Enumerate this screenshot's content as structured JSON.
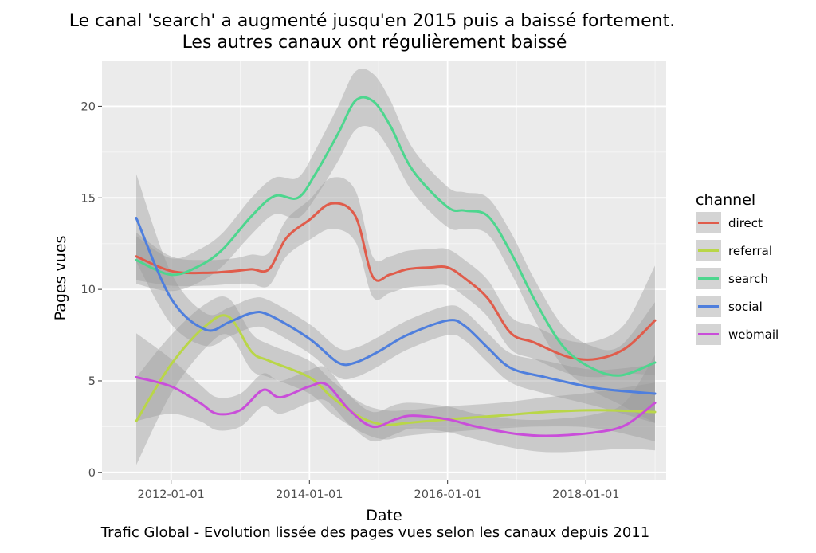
{
  "chart_data": {
    "type": "line",
    "title": "Le canal 'search' a augmenté jusqu'en 2015 puis a baissé fortement.",
    "subtitle": "Les autres canaux ont régulièrement baissé",
    "caption": "Trafic Global - Evolution lissée des pages vues selon les canaux depuis 2011",
    "xlabel": "Date",
    "ylabel": "Pages vues",
    "x_ticks": [
      "2012-01-01",
      "2014-01-01",
      "2016-01-01",
      "2018-01-01"
    ],
    "y_ticks": [
      0,
      5,
      10,
      15,
      20
    ],
    "xlim": [
      "2011-01-01",
      "2019-03-01"
    ],
    "ylim": [
      -0.4,
      22.5
    ],
    "grid": true,
    "legend": {
      "title": "channel",
      "placement": "right"
    },
    "series": [
      {
        "name": "direct",
        "color": "#e05c4b",
        "x": [
          "2011-07-01",
          "2012-01-01",
          "2012-07-01",
          "2012-12-01",
          "2013-03-01",
          "2013-06-01",
          "2013-09-01",
          "2014-01-01",
          "2014-05-01",
          "2014-09-01",
          "2014-12-01",
          "2015-03-01",
          "2015-06-01",
          "2015-10-01",
          "2016-01-01",
          "2016-04-01",
          "2016-08-01",
          "2016-12-01",
          "2017-04-01",
          "2017-10-01",
          "2018-03-01",
          "2018-08-01",
          "2019-01-01"
        ],
        "y": [
          11.8,
          11.0,
          10.9,
          11.0,
          11.1,
          11.1,
          12.8,
          13.8,
          14.7,
          14.0,
          10.7,
          10.8,
          11.1,
          11.2,
          11.2,
          10.6,
          9.5,
          7.6,
          7.1,
          6.3,
          6.2,
          6.8,
          8.3
        ],
        "band": [
          1.3,
          0.8,
          0.7,
          0.7,
          0.8,
          0.9,
          1.0,
          1.1,
          1.4,
          1.4,
          1.1,
          1.0,
          1.0,
          1.0,
          1.0,
          1.0,
          1.0,
          0.9,
          0.9,
          0.9,
          1.0,
          1.4,
          3.0
        ]
      },
      {
        "name": "referral",
        "color": "#b9d648",
        "x": [
          "2011-07-01",
          "2012-01-01",
          "2012-07-01",
          "2012-11-01",
          "2013-03-01",
          "2013-06-01",
          "2014-01-01",
          "2014-05-01",
          "2014-10-01",
          "2015-02-01",
          "2015-06-01",
          "2016-01-01",
          "2016-10-01",
          "2017-06-01",
          "2018-03-01",
          "2019-01-01"
        ],
        "y": [
          2.8,
          5.9,
          8.0,
          8.5,
          6.6,
          6.1,
          5.2,
          4.1,
          3.0,
          2.6,
          2.7,
          2.9,
          3.1,
          3.3,
          3.4,
          3.3
        ],
        "band": [
          2.4,
          1.6,
          1.2,
          1.0,
          1.0,
          0.9,
          0.9,
          0.9,
          0.8,
          0.8,
          0.7,
          0.7,
          0.7,
          0.8,
          1.0,
          1.6
        ]
      },
      {
        "name": "search",
        "color": "#4dd68e",
        "x": [
          "2011-07-01",
          "2012-01-01",
          "2012-06-01",
          "2012-10-01",
          "2013-03-01",
          "2013-07-01",
          "2013-11-01",
          "2014-02-01",
          "2014-06-01",
          "2014-09-01",
          "2014-12-01",
          "2015-03-01",
          "2015-07-01",
          "2016-01-01",
          "2016-04-01",
          "2016-08-01",
          "2016-12-01",
          "2017-04-01",
          "2017-09-01",
          "2018-02-01",
          "2018-07-01",
          "2019-01-01"
        ],
        "y": [
          11.6,
          10.8,
          11.3,
          12.2,
          14.0,
          15.1,
          15.0,
          16.3,
          18.5,
          20.3,
          20.3,
          19.0,
          16.5,
          14.5,
          14.3,
          14.0,
          12.0,
          9.5,
          6.9,
          5.7,
          5.3,
          6.0
        ],
        "band": [
          1.3,
          0.9,
          0.9,
          0.9,
          1.0,
          1.0,
          1.1,
          1.3,
          1.5,
          1.6,
          1.5,
          1.4,
          1.2,
          1.1,
          1.0,
          1.0,
          1.1,
          1.1,
          1.1,
          1.2,
          1.6,
          3.3
        ]
      },
      {
        "name": "social",
        "color": "#4f7fdd",
        "x": [
          "2011-07-01",
          "2012-01-01",
          "2012-07-01",
          "2012-11-01",
          "2013-03-01",
          "2013-06-01",
          "2014-01-01",
          "2014-06-01",
          "2014-09-01",
          "2015-01-01",
          "2015-06-01",
          "2016-01-01",
          "2016-04-01",
          "2016-08-01",
          "2016-12-01",
          "2017-06-01",
          "2018-03-01",
          "2019-01-01"
        ],
        "y": [
          13.9,
          9.5,
          7.8,
          8.2,
          8.7,
          8.6,
          7.3,
          6.0,
          6.0,
          6.6,
          7.5,
          8.3,
          8.0,
          6.8,
          5.7,
          5.2,
          4.6,
          4.3
        ],
        "band": [
          2.4,
          1.4,
          0.9,
          0.8,
          0.8,
          0.8,
          0.8,
          0.8,
          0.8,
          0.8,
          0.8,
          0.8,
          0.8,
          0.8,
          0.8,
          0.9,
          1.0,
          1.6
        ]
      },
      {
        "name": "webmail",
        "color": "#c94ed9",
        "x": [
          "2011-07-01",
          "2012-01-01",
          "2012-06-01",
          "2012-09-01",
          "2013-01-01",
          "2013-05-01",
          "2013-08-01",
          "2014-01-01",
          "2014-04-01",
          "2014-08-01",
          "2014-12-01",
          "2015-04-01",
          "2015-07-01",
          "2016-01-01",
          "2016-06-01",
          "2017-01-01",
          "2017-07-01",
          "2018-03-01",
          "2018-08-01",
          "2019-01-01"
        ],
        "y": [
          5.2,
          4.7,
          3.8,
          3.2,
          3.4,
          4.5,
          4.1,
          4.7,
          4.8,
          3.4,
          2.5,
          2.9,
          3.1,
          2.9,
          2.5,
          2.1,
          2.0,
          2.2,
          2.6,
          3.8
        ],
        "band": [
          2.4,
          1.5,
          1.0,
          0.9,
          0.9,
          0.9,
          0.9,
          0.9,
          0.9,
          0.8,
          0.8,
          0.8,
          0.7,
          0.7,
          0.7,
          0.8,
          0.9,
          1.0,
          1.3,
          2.6
        ]
      }
    ]
  }
}
